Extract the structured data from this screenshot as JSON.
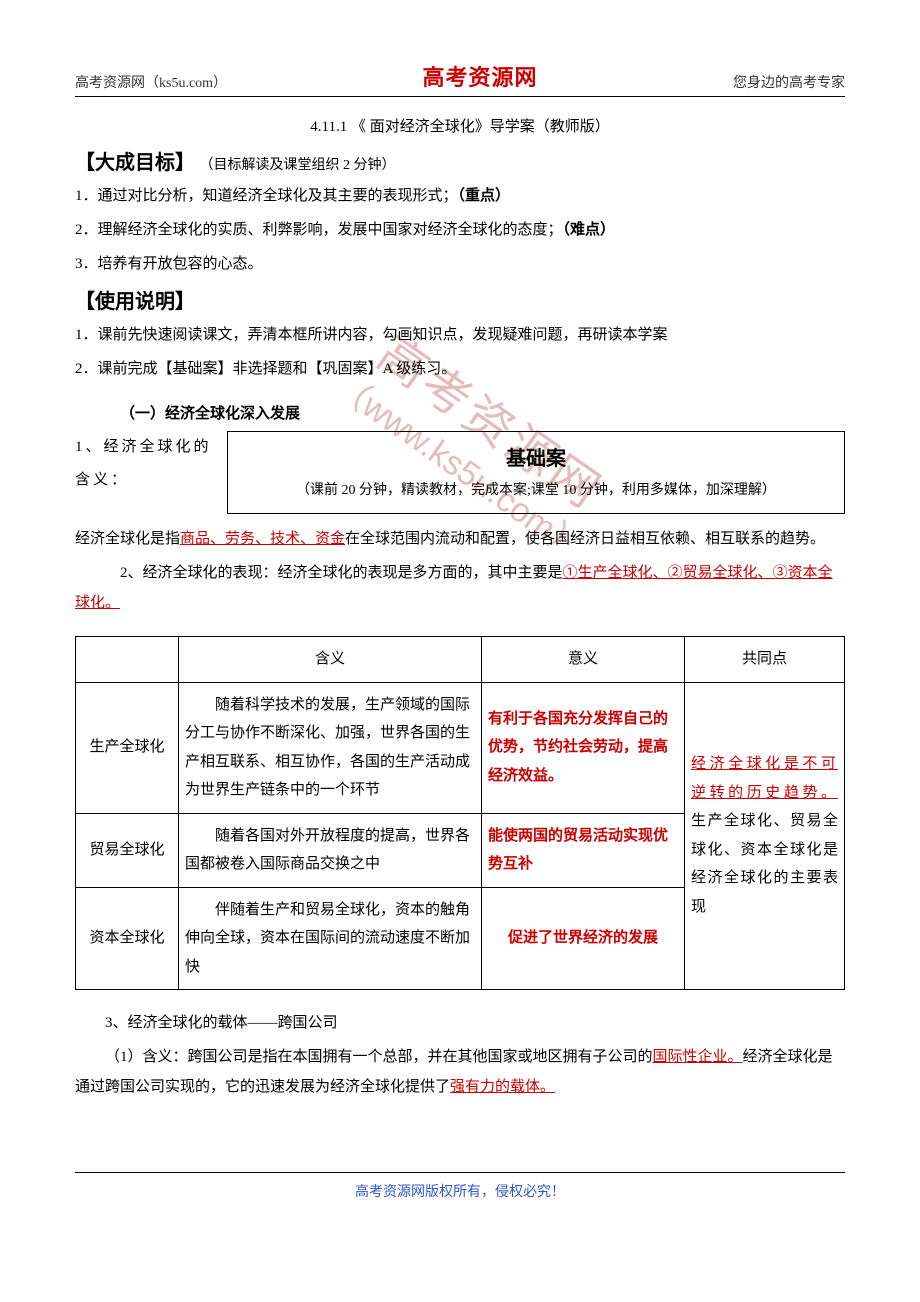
{
  "header": {
    "left": "高考资源网（ks5u.com）",
    "center": "高考资源网",
    "right": "您身边的高考专家"
  },
  "watermark": {
    "text": "高考资源网",
    "url": "（www.ks5u.com）"
  },
  "title": "4.11.1 《 面对经济全球化》导学案（教师版）",
  "goals": {
    "heading": "【大成目标】",
    "heading_note": "（目标解读及课堂组织 2 分钟）",
    "items": [
      {
        "pre": "1．通过对比分析，知道经济全球化及其主要的表现形式；",
        "tag": "（重点）"
      },
      {
        "pre": "2．理解经济全球化的实质、利弊影响，发展中国家对经济全球化的态度；",
        "tag": "（难点）"
      },
      {
        "pre": "3．培养有开放包容的心态。",
        "tag": ""
      }
    ]
  },
  "usage": {
    "heading": "【使用说明】",
    "items": [
      "1．课前先快速阅读课文，弄清本框所讲内容，勾画知识点，发现疑难问题，再研读本学案",
      "2．课前完成【基础案】非选择题和【巩固案】A 级练习。"
    ]
  },
  "section1": {
    "heading": "（一）经济全球化深入发展",
    "box_title": "基础案",
    "box_sub": "（课前 20 分钟，精读教材，完成本案;课堂 10 分钟，利用多媒体，加深理解）",
    "left_flow": "1、经济全球化的含义：",
    "para1_pre": "经济全球化是指",
    "para1_red": "商品、劳务、技术、资金",
    "para1_post": "在全球范围内流动和配置，使各国经济日益相互依赖、相互联系的趋势。",
    "para2_pre": "2、经济全球化的表现：经济全球化的表现是多方面的，其中主要是",
    "para2_red": "①生产全球化、②贸易全球化、③资本全球化。"
  },
  "table": {
    "headers": [
      "",
      "含义",
      "意义",
      "共同点"
    ],
    "col_widths": [
      "90px",
      "290px",
      "190px",
      "auto"
    ],
    "rows": [
      {
        "label": "生产全球化",
        "meaning": "随着科学技术的发展，生产领域的国际分工与协作不断深化、加强，世界各国的生产相互联系、相互协作，各国的生产活动成为世界生产链条中的一个环节",
        "sig": "有利于各国充分发挥自己的优势，节约社会劳动，提高经济效益。"
      },
      {
        "label": "贸易全球化",
        "meaning": "随着各国对外开放程度的提高，世界各国都被卷入国际商品交换之中",
        "sig": "能使两国的贸易活动实现优势互补"
      },
      {
        "label": "资本全球化",
        "meaning": "伴随着生产和贸易全球化，资本的触角伸向全球，资本在国际间的流动速度不断加快",
        "sig": "促进了世界经济的发展"
      }
    ],
    "common_red": "经济全球化是不可逆转的历史趋势。",
    "common_post": "生产全球化、贸易全球化、资本全球化是经济全球化的主要表现"
  },
  "section3": {
    "p1": "3、经济全球化的载体——跨国公司",
    "p2_pre": "（1）含义：跨国公司是指在本国拥有一个总部，并在其他国家或地区拥有子公司的",
    "p2_red1": "国际性企业。",
    "p2_mid": "经济全球化是通过跨国公司实现的，它的迅速发展为经济全球化提供了",
    "p2_red2": "强有力的载体。"
  },
  "footer": "高考资源网版权所有，侵权必究！",
  "colors": {
    "accent_red": "#cc0000",
    "watermark_color": "#d9a0a0",
    "footer_color": "#3355cc",
    "border_color": "#000000",
    "background": "#ffffff"
  }
}
